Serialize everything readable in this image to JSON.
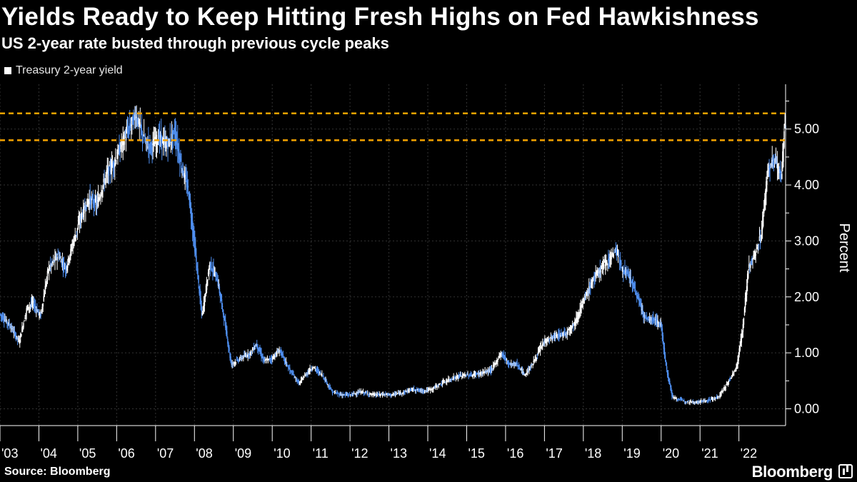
{
  "header": {
    "title": "Yields Ready to Keep Hitting Fresh Highs on Fed Hawkishness",
    "subtitle": "US 2-year rate busted through previous cycle peaks"
  },
  "footer": {
    "source": "Source: Bloomberg",
    "brand": "Bloomberg"
  },
  "colors": {
    "background": "#000000",
    "rising_candle": "#ffffff",
    "falling_candle": "#4f8ff0",
    "reference_line": "#f5a300",
    "grid": "#333333"
  },
  "chart_data": {
    "type": "candlestick",
    "title": "Yields Ready to Keep Hitting Fresh Highs on Fed Hawkishness",
    "subtitle": "US 2-year rate busted through previous cycle peaks",
    "legend": [
      "Treasury 2-year yield"
    ],
    "legend_position": "top-left",
    "ylabel": "Percent",
    "ylim": [
      -0.3,
      5.8
    ],
    "y_ticks": [
      0,
      1,
      2,
      3,
      4,
      5
    ],
    "y_tick_labels": [
      "0.00",
      "1.00",
      "2.00",
      "3.00",
      "4.00",
      "5.00"
    ],
    "x_start": 2003.0,
    "x_end": 2023.2,
    "x_ticks": [
      "'03",
      "'04",
      "'05",
      "'06",
      "'07",
      "'08",
      "'09",
      "'10",
      "'11",
      "'12",
      "'13",
      "'14",
      "'15",
      "'16",
      "'17",
      "'18",
      "'19",
      "'20",
      "'21",
      "'22"
    ],
    "reference_lines": [
      5.28,
      4.8
    ],
    "series": [
      {
        "name": "Treasury 2-year yield",
        "anchors": [
          [
            2003.0,
            1.7
          ],
          [
            2003.25,
            1.5
          ],
          [
            2003.5,
            1.2
          ],
          [
            2003.7,
            1.8
          ],
          [
            2003.85,
            1.9
          ],
          [
            2004.05,
            1.65
          ],
          [
            2004.25,
            2.5
          ],
          [
            2004.5,
            2.75
          ],
          [
            2004.7,
            2.5
          ],
          [
            2004.9,
            3.0
          ],
          [
            2005.1,
            3.45
          ],
          [
            2005.3,
            3.75
          ],
          [
            2005.5,
            3.65
          ],
          [
            2005.75,
            4.2
          ],
          [
            2005.95,
            4.4
          ],
          [
            2006.15,
            4.75
          ],
          [
            2006.35,
            5.05
          ],
          [
            2006.5,
            5.25
          ],
          [
            2006.75,
            4.75
          ],
          [
            2006.9,
            4.7
          ],
          [
            2007.1,
            4.85
          ],
          [
            2007.3,
            4.7
          ],
          [
            2007.5,
            4.95
          ],
          [
            2007.65,
            4.4
          ],
          [
            2007.85,
            3.9
          ],
          [
            2008.0,
            3.0
          ],
          [
            2008.2,
            1.65
          ],
          [
            2008.4,
            2.6
          ],
          [
            2008.6,
            2.3
          ],
          [
            2008.8,
            1.5
          ],
          [
            2008.95,
            0.8
          ],
          [
            2009.2,
            0.9
          ],
          [
            2009.45,
            1.0
          ],
          [
            2009.6,
            1.15
          ],
          [
            2009.8,
            0.85
          ],
          [
            2010.0,
            0.9
          ],
          [
            2010.2,
            1.05
          ],
          [
            2010.45,
            0.7
          ],
          [
            2010.7,
            0.45
          ],
          [
            2010.85,
            0.6
          ],
          [
            2011.05,
            0.75
          ],
          [
            2011.3,
            0.6
          ],
          [
            2011.55,
            0.3
          ],
          [
            2011.8,
            0.25
          ],
          [
            2012.0,
            0.25
          ],
          [
            2012.3,
            0.3
          ],
          [
            2012.6,
            0.25
          ],
          [
            2012.9,
            0.26
          ],
          [
            2013.1,
            0.25
          ],
          [
            2013.4,
            0.3
          ],
          [
            2013.6,
            0.35
          ],
          [
            2013.9,
            0.32
          ],
          [
            2014.1,
            0.35
          ],
          [
            2014.35,
            0.45
          ],
          [
            2014.65,
            0.55
          ],
          [
            2014.9,
            0.6
          ],
          [
            2015.15,
            0.6
          ],
          [
            2015.45,
            0.65
          ],
          [
            2015.65,
            0.7
          ],
          [
            2015.9,
            1.0
          ],
          [
            2016.1,
            0.8
          ],
          [
            2016.3,
            0.8
          ],
          [
            2016.5,
            0.6
          ],
          [
            2016.7,
            0.8
          ],
          [
            2016.85,
            1.0
          ],
          [
            2017.0,
            1.2
          ],
          [
            2017.3,
            1.3
          ],
          [
            2017.55,
            1.35
          ],
          [
            2017.8,
            1.55
          ],
          [
            2018.0,
            1.9
          ],
          [
            2018.25,
            2.3
          ],
          [
            2018.5,
            2.55
          ],
          [
            2018.7,
            2.7
          ],
          [
            2018.85,
            2.85
          ],
          [
            2019.0,
            2.5
          ],
          [
            2019.2,
            2.35
          ],
          [
            2019.4,
            2.0
          ],
          [
            2019.6,
            1.6
          ],
          [
            2019.85,
            1.6
          ],
          [
            2020.0,
            1.5
          ],
          [
            2020.15,
            0.7
          ],
          [
            2020.3,
            0.2
          ],
          [
            2020.6,
            0.14
          ],
          [
            2020.9,
            0.12
          ],
          [
            2021.2,
            0.15
          ],
          [
            2021.5,
            0.22
          ],
          [
            2021.75,
            0.5
          ],
          [
            2021.95,
            0.75
          ],
          [
            2022.1,
            1.4
          ],
          [
            2022.25,
            2.5
          ],
          [
            2022.45,
            2.8
          ],
          [
            2022.6,
            3.2
          ],
          [
            2022.75,
            4.3
          ],
          [
            2022.95,
            4.45
          ],
          [
            2023.1,
            4.1
          ],
          [
            2023.18,
            5.05
          ]
        ]
      }
    ]
  }
}
